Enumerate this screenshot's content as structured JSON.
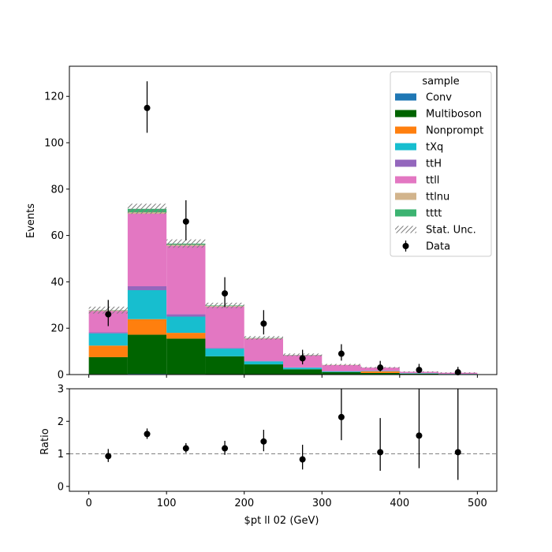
{
  "chart_data": {
    "type": "bar",
    "stacked": true,
    "bin_edges": [
      0,
      50,
      100,
      150,
      200,
      250,
      300,
      350,
      400,
      450,
      500
    ],
    "xlabel": "$pt ll 02 (GeV)",
    "xlim": [
      -25,
      525
    ],
    "xticks": [
      "0",
      "100",
      "200",
      "300",
      "400",
      "500"
    ],
    "main": {
      "ylabel": "Events",
      "ylim": [
        0,
        133
      ],
      "yticks": [
        "0",
        "20",
        "40",
        "60",
        "80",
        "100",
        "120"
      ],
      "series": [
        {
          "name": "Conv",
          "color": "#1f77b4",
          "values": [
            0.2,
            0.3,
            0.2,
            0.1,
            0.1,
            0.0,
            0.0,
            0.0,
            0.0,
            0.0
          ]
        },
        {
          "name": "Multiboson",
          "color": "#006400",
          "values": [
            7.3,
            16.9,
            15.3,
            7.8,
            4.3,
            2.3,
            1.1,
            0.7,
            0.4,
            0.2
          ]
        },
        {
          "name": "Nonprompt",
          "color": "#ff7f0e",
          "values": [
            5.0,
            6.7,
            2.5,
            0.0,
            0.0,
            0.0,
            0.0,
            0.7,
            0.0,
            0.0
          ]
        },
        {
          "name": "tXq",
          "color": "#17becf",
          "values": [
            5.3,
            12.5,
            7.0,
            3.3,
            1.3,
            0.7,
            0.3,
            0.2,
            0.2,
            0.1
          ]
        },
        {
          "name": "ttH",
          "color": "#9467bd",
          "values": [
            0.4,
            1.7,
            1.0,
            0.3,
            0.2,
            0.1,
            0.1,
            0.0,
            0.0,
            0.0
          ]
        },
        {
          "name": "ttll",
          "color": "#e377c2",
          "values": [
            9.2,
            31.3,
            29.5,
            17.8,
            9.6,
            5.2,
            2.6,
            1.4,
            0.6,
            0.5
          ]
        },
        {
          "name": "ttlnu",
          "color": "#d2b48c",
          "values": [
            0.3,
            0.6,
            0.5,
            0.3,
            0.2,
            0.1,
            0.1,
            0.0,
            0.0,
            0.0
          ]
        },
        {
          "name": "tttt",
          "color": "#3cb371",
          "values": [
            0.1,
            1.5,
            0.5,
            0.2,
            0.1,
            0.1,
            0.0,
            0.0,
            0.0,
            0.0
          ]
        }
      ],
      "stat_unc": [
        1.5,
        2.2,
        1.8,
        1.2,
        0.8,
        0.6,
        0.4,
        0.3,
        0.2,
        0.2
      ],
      "data": {
        "name": "Data",
        "values": [
          26,
          115,
          66,
          35,
          22,
          7,
          9,
          3,
          2,
          1
        ],
        "err_up": [
          6.2,
          11.5,
          9.2,
          7.0,
          5.8,
          3.7,
          4.1,
          2.9,
          2.6,
          2.3
        ],
        "err_down": [
          5.1,
          10.7,
          8.1,
          5.9,
          4.7,
          2.6,
          3.0,
          1.6,
          1.3,
          0.8
        ]
      }
    },
    "ratio": {
      "ylabel": "Ratio",
      "ylim": [
        -0.15,
        3.0
      ],
      "yticks": [
        "0",
        "1",
        "2",
        "3"
      ],
      "reference": 1,
      "values": [
        0.93,
        1.61,
        1.17,
        1.17,
        1.38,
        0.83,
        2.13,
        1.05,
        1.56,
        1.05
      ],
      "err_up": [
        0.22,
        0.17,
        0.16,
        0.23,
        0.36,
        0.45,
        0.97,
        1.05,
        2.0,
        2.4
      ],
      "err_down": [
        0.18,
        0.15,
        0.14,
        0.2,
        0.3,
        0.31,
        0.71,
        0.57,
        1.0,
        0.85
      ]
    },
    "legend": {
      "title": "sample",
      "placement": "upper right",
      "stat_label": "Stat. Unc."
    }
  }
}
